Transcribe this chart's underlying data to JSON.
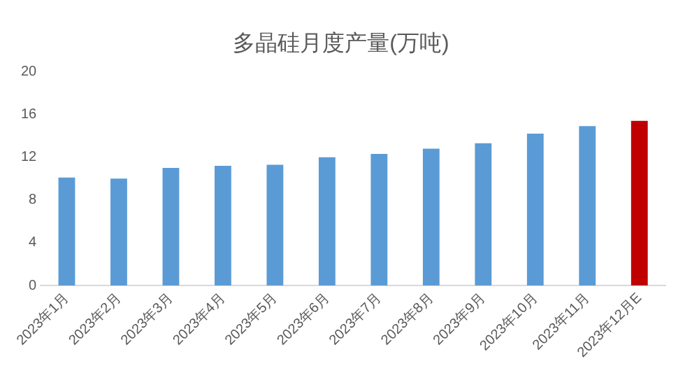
{
  "chart_data": {
    "type": "bar",
    "title": "多晶硅月度产量(万吨)",
    "categories": [
      "2023年1月",
      "2023年2月",
      "2023年3月",
      "2023年4月",
      "2023年5月",
      "2023年6月",
      "2023年7月",
      "2023年8月",
      "2023年9月",
      "2023年10月",
      "2023年11月",
      "2023年12月E"
    ],
    "values": [
      10.1,
      10.0,
      11.0,
      11.2,
      11.3,
      12.0,
      12.3,
      12.8,
      13.3,
      14.2,
      14.9,
      15.4
    ],
    "colors": [
      "#5b9bd5",
      "#5b9bd5",
      "#5b9bd5",
      "#5b9bd5",
      "#5b9bd5",
      "#5b9bd5",
      "#5b9bd5",
      "#5b9bd5",
      "#5b9bd5",
      "#5b9bd5",
      "#5b9bd5",
      "#c00000"
    ],
    "ylim": [
      0,
      20
    ],
    "yticks": [
      0,
      4,
      8,
      12,
      16,
      20
    ],
    "grid": false,
    "legend": false
  }
}
